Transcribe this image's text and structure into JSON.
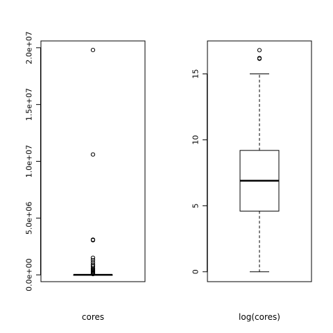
{
  "chart_data": [
    {
      "type": "boxplot",
      "xlabel": "cores",
      "ylim": [
        -600000,
        20600000
      ],
      "yticks": [
        0,
        5000000,
        10000000,
        15000000,
        20000000
      ],
      "yticklabels": [
        "0.0e+00",
        "5.0e+06",
        "1.0e+07",
        "1.5e+07",
        "2.0e+07"
      ],
      "box": {
        "min": 0,
        "q1": 2,
        "median": 5,
        "q3": 20,
        "whisker_max": 40
      },
      "outliers": [
        19800000,
        10600000,
        3100000,
        3050000,
        1500000,
        1300000,
        1100000,
        900000,
        750000,
        600000,
        500000,
        420000,
        350000,
        280000,
        220000,
        160000,
        110000,
        70000
      ]
    },
    {
      "type": "boxplot",
      "xlabel": "log(cores)",
      "ylim": [
        -0.75,
        17.5
      ],
      "yticks": [
        0,
        5,
        10,
        15
      ],
      "yticklabels": [
        "0",
        "5",
        "10",
        "15"
      ],
      "box": {
        "min": 0,
        "q1": 4.6,
        "median": 6.9,
        "q3": 9.2,
        "whisker_max": 15
      },
      "outliers": [
        16.8,
        16.2,
        16.15
      ]
    }
  ]
}
